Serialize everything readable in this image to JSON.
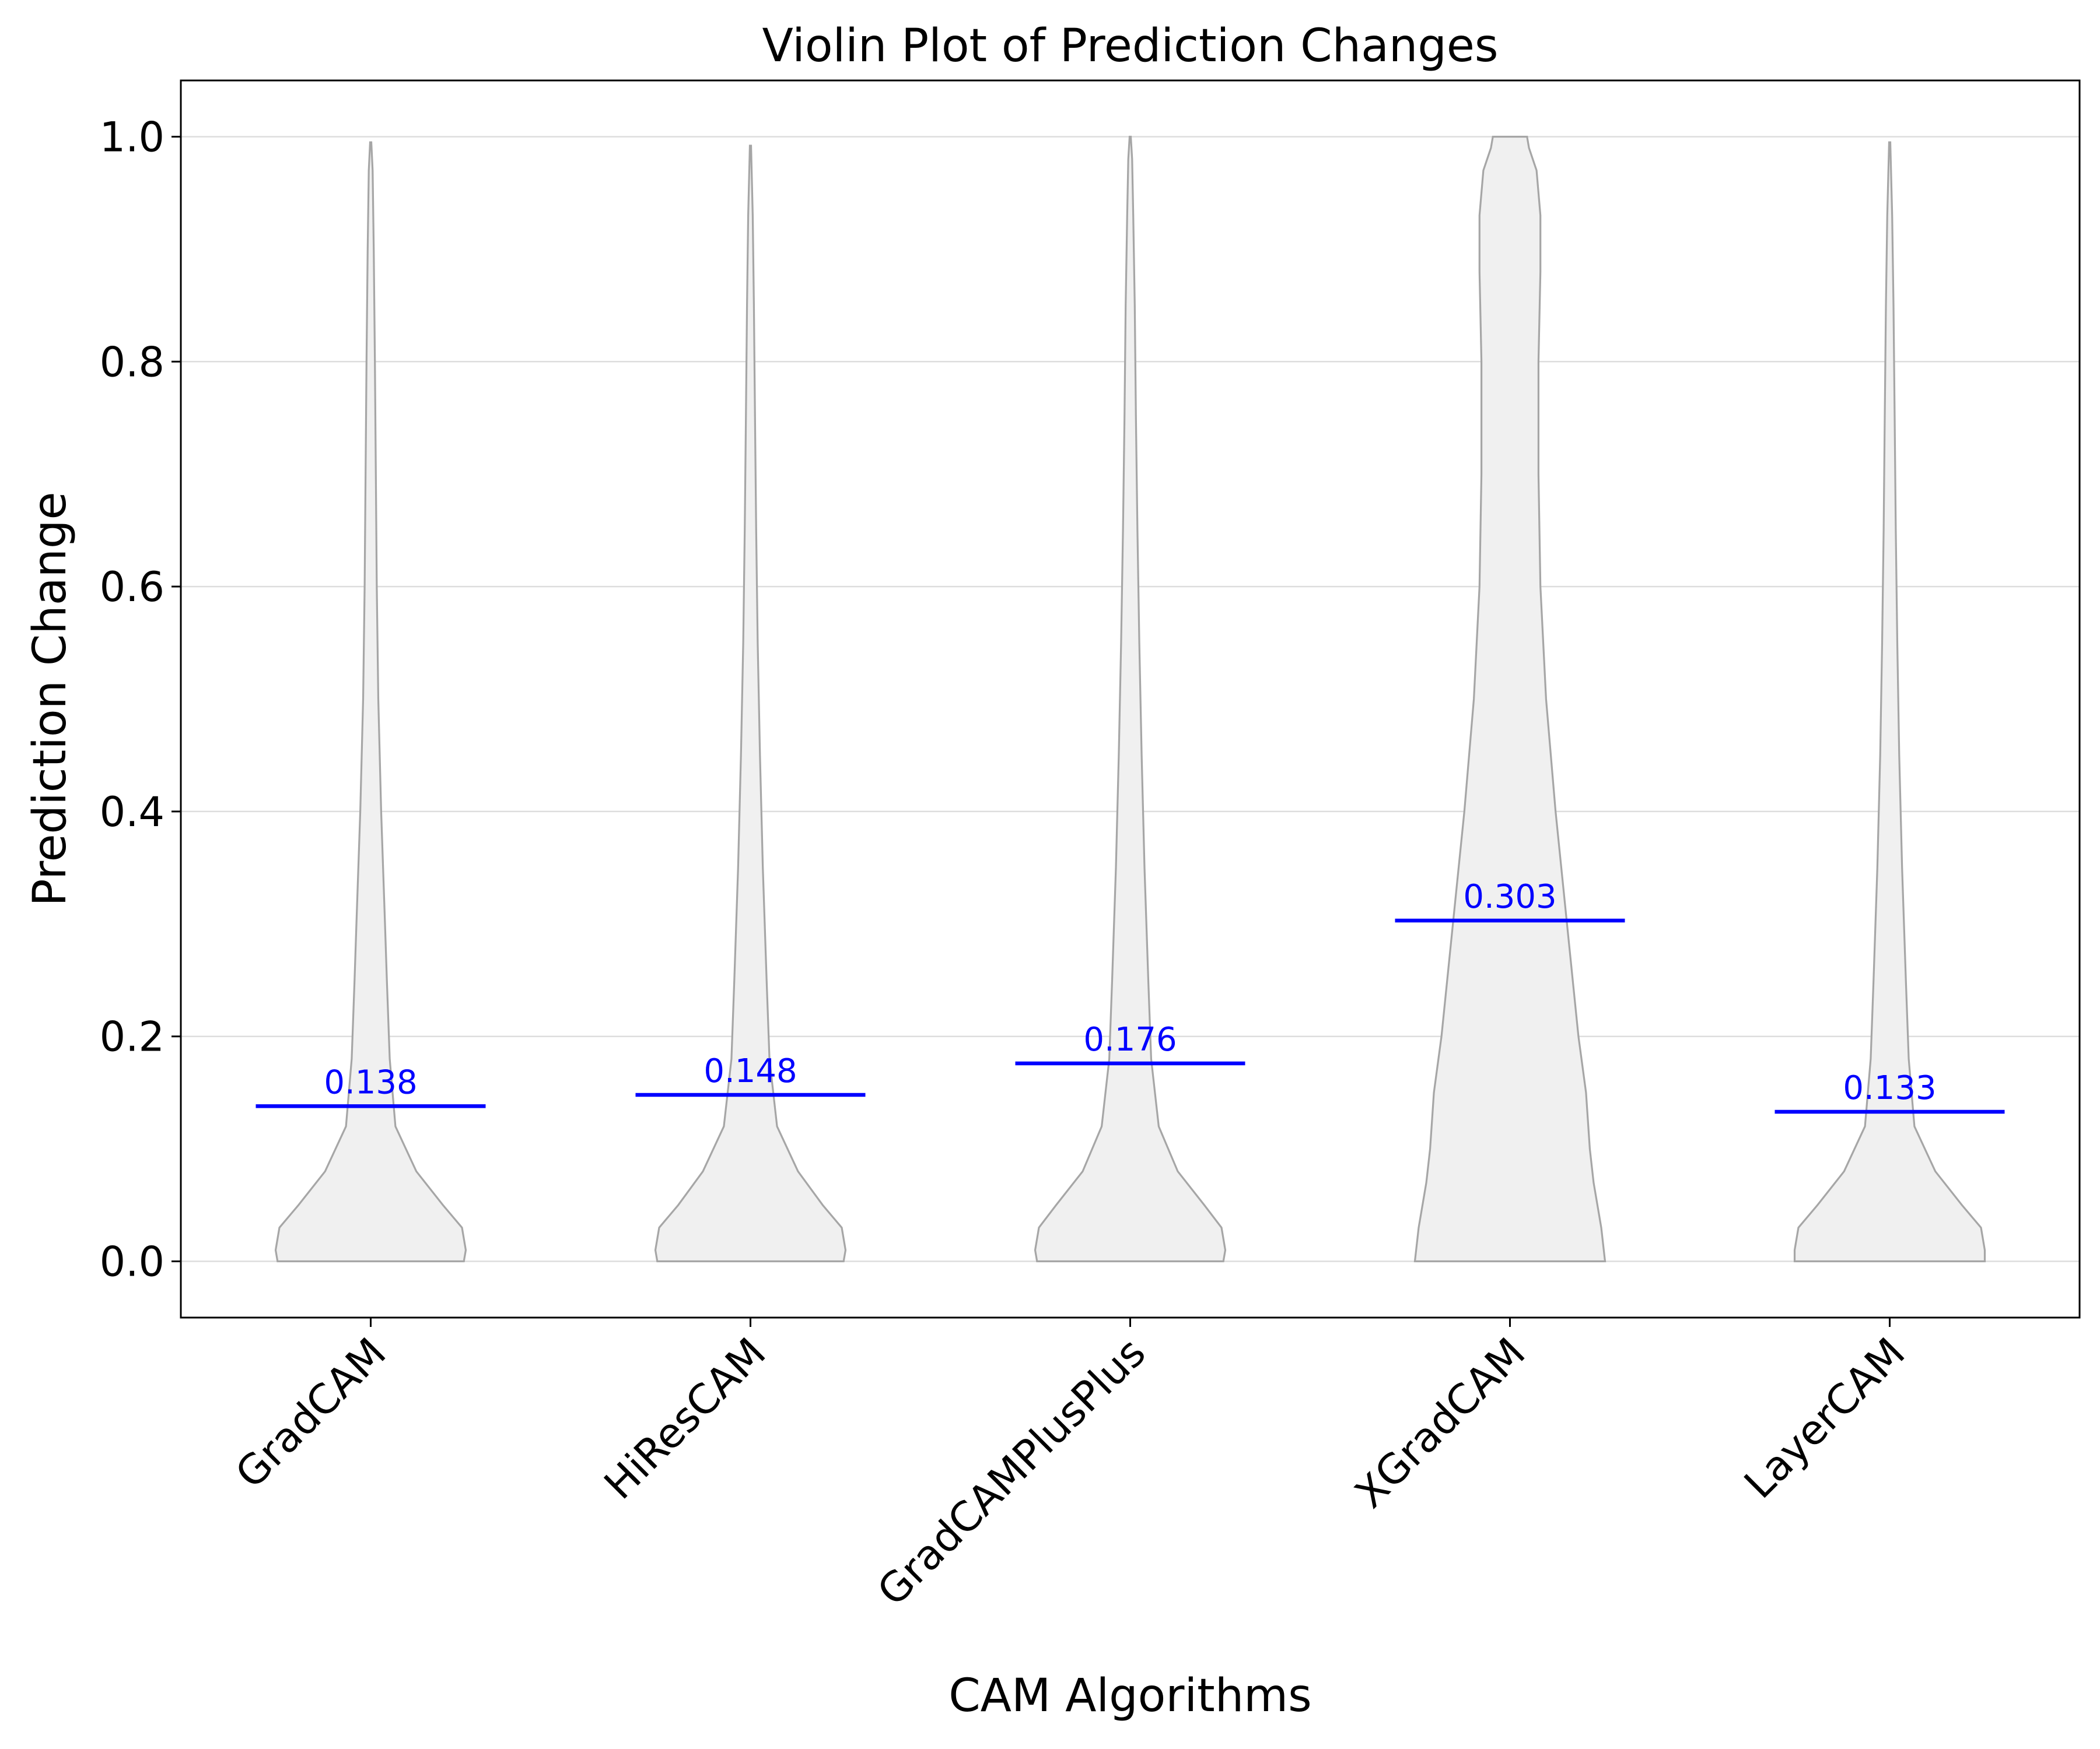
{
  "chart_data": {
    "type": "violin",
    "title": "Violin Plot of Prediction Changes",
    "xlabel": "CAM Algorithms",
    "ylabel": "Prediction Change",
    "categories": [
      "GradCAM",
      "HiResCAM",
      "GradCAMPlusPlus",
      "XGradCAM",
      "LayerCAM"
    ],
    "means": [
      0.138,
      0.148,
      0.176,
      0.303,
      0.133
    ],
    "mean_labels": [
      "0.138",
      "0.148",
      "0.176",
      "0.303",
      "0.133"
    ],
    "ylim": [
      -0.05,
      1.05
    ],
    "yticks": [
      0.0,
      0.2,
      0.4,
      0.6,
      0.8,
      1.0
    ],
    "ytick_labels": [
      "0.0",
      "0.2",
      "0.4",
      "0.6",
      "0.8",
      "1.0"
    ],
    "grid": "horizontal",
    "colors": {
      "violin_fill": "#f0f0f0",
      "violin_edge": "#a6a6a6",
      "mean_line": "#0000ff",
      "grid": "#dddddd"
    },
    "violins": [
      {
        "name": "GradCAM",
        "ymax": 0.995,
        "profile": [
          [
            0.0,
            0.49
          ],
          [
            0.01,
            0.5
          ],
          [
            0.03,
            0.48
          ],
          [
            0.05,
            0.38
          ],
          [
            0.08,
            0.24
          ],
          [
            0.12,
            0.13
          ],
          [
            0.18,
            0.1
          ],
          [
            0.25,
            0.085
          ],
          [
            0.3,
            0.075
          ],
          [
            0.4,
            0.055
          ],
          [
            0.5,
            0.04
          ],
          [
            0.6,
            0.032
          ],
          [
            0.7,
            0.027
          ],
          [
            0.8,
            0.022
          ],
          [
            0.9,
            0.016
          ],
          [
            0.97,
            0.01
          ],
          [
            0.995,
            0.003
          ]
        ]
      },
      {
        "name": "HiResCAM",
        "ymax": 0.992,
        "profile": [
          [
            0.0,
            0.49
          ],
          [
            0.01,
            0.5
          ],
          [
            0.03,
            0.48
          ],
          [
            0.05,
            0.38
          ],
          [
            0.08,
            0.25
          ],
          [
            0.12,
            0.14
          ],
          [
            0.18,
            0.1
          ],
          [
            0.25,
            0.085
          ],
          [
            0.35,
            0.065
          ],
          [
            0.45,
            0.05
          ],
          [
            0.55,
            0.038
          ],
          [
            0.65,
            0.03
          ],
          [
            0.75,
            0.024
          ],
          [
            0.85,
            0.018
          ],
          [
            0.93,
            0.012
          ],
          [
            0.992,
            0.003
          ]
        ]
      },
      {
        "name": "GradCAMPlusPlus",
        "ymax": 1.0,
        "profile": [
          [
            0.0,
            0.49
          ],
          [
            0.01,
            0.5
          ],
          [
            0.03,
            0.48
          ],
          [
            0.05,
            0.39
          ],
          [
            0.08,
            0.25
          ],
          [
            0.12,
            0.15
          ],
          [
            0.18,
            0.11
          ],
          [
            0.25,
            0.095
          ],
          [
            0.35,
            0.075
          ],
          [
            0.45,
            0.06
          ],
          [
            0.55,
            0.048
          ],
          [
            0.65,
            0.038
          ],
          [
            0.75,
            0.03
          ],
          [
            0.85,
            0.024
          ],
          [
            0.93,
            0.016
          ],
          [
            0.98,
            0.01
          ],
          [
            1.0,
            0.003
          ]
        ]
      },
      {
        "name": "XGradCAM",
        "ymax": 1.0,
        "profile": [
          [
            0.0,
            0.5
          ],
          [
            0.03,
            0.48
          ],
          [
            0.07,
            0.44
          ],
          [
            0.1,
            0.42
          ],
          [
            0.15,
            0.4
          ],
          [
            0.2,
            0.36
          ],
          [
            0.3,
            0.3
          ],
          [
            0.4,
            0.24
          ],
          [
            0.5,
            0.19
          ],
          [
            0.6,
            0.16
          ],
          [
            0.7,
            0.15
          ],
          [
            0.8,
            0.15
          ],
          [
            0.88,
            0.16
          ],
          [
            0.93,
            0.16
          ],
          [
            0.97,
            0.14
          ],
          [
            0.99,
            0.1
          ],
          [
            1.0,
            0.09
          ]
        ]
      },
      {
        "name": "LayerCAM",
        "ymax": 0.995,
        "profile": [
          [
            0.0,
            0.5
          ],
          [
            0.01,
            0.5
          ],
          [
            0.03,
            0.48
          ],
          [
            0.05,
            0.38
          ],
          [
            0.08,
            0.24
          ],
          [
            0.12,
            0.13
          ],
          [
            0.18,
            0.1
          ],
          [
            0.25,
            0.085
          ],
          [
            0.35,
            0.065
          ],
          [
            0.45,
            0.05
          ],
          [
            0.55,
            0.04
          ],
          [
            0.65,
            0.032
          ],
          [
            0.75,
            0.026
          ],
          [
            0.85,
            0.02
          ],
          [
            0.93,
            0.013
          ],
          [
            0.995,
            0.003
          ]
        ]
      }
    ]
  }
}
